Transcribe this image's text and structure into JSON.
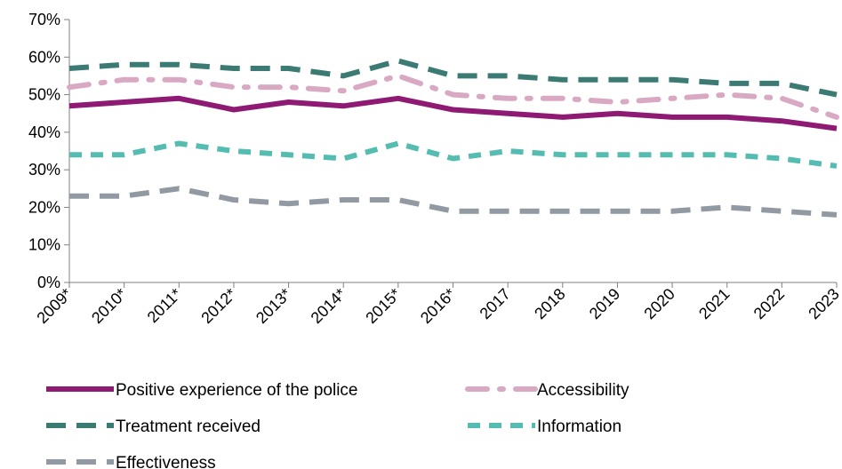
{
  "chart_data": {
    "type": "line",
    "title": "",
    "xlabel": "",
    "ylabel": "",
    "categories": [
      "2009*",
      "2010*",
      "2011*",
      "2012*",
      "2013*",
      "2014*",
      "2015*",
      "2016*",
      "2017",
      "2018",
      "2019",
      "2020",
      "2021",
      "2022",
      "2023"
    ],
    "ylim": [
      0,
      70
    ],
    "yticks": [
      "0%",
      "10%",
      "20%",
      "30%",
      "40%",
      "50%",
      "60%",
      "70%"
    ],
    "grid": false,
    "legend_position": "bottom",
    "series": [
      {
        "name": "Positive experience of the police",
        "color": "#8e1a74",
        "style": "solid",
        "values": [
          47,
          48,
          49,
          46,
          48,
          47,
          49,
          46,
          45,
          44,
          45,
          44,
          44,
          43,
          41
        ]
      },
      {
        "name": "Accessibility",
        "color": "#d9a9c4",
        "style": "dash-dot",
        "values": [
          52,
          54,
          54,
          52,
          52,
          51,
          55,
          50,
          49,
          49,
          48,
          49,
          50,
          49,
          44
        ]
      },
      {
        "name": "Treatment received",
        "color": "#3b7b74",
        "style": "long-dash",
        "values": [
          57,
          58,
          58,
          57,
          57,
          55,
          59,
          55,
          55,
          54,
          54,
          54,
          53,
          53,
          50
        ]
      },
      {
        "name": "Information",
        "color": "#55bcb1",
        "style": "dash",
        "values": [
          34,
          34,
          37,
          35,
          34,
          33,
          37,
          33,
          35,
          34,
          34,
          34,
          34,
          33,
          31
        ]
      },
      {
        "name": "Effectiveness",
        "color": "#9199a2",
        "style": "long-dash",
        "values": [
          23,
          23,
          25,
          22,
          21,
          22,
          22,
          19,
          19,
          19,
          19,
          19,
          20,
          19,
          18
        ]
      }
    ]
  }
}
